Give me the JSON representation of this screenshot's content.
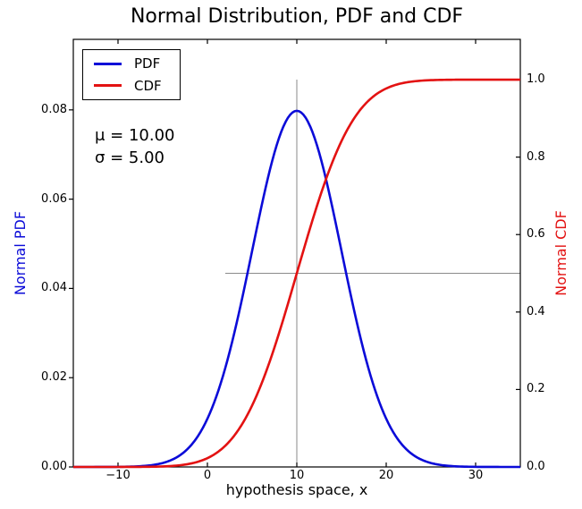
{
  "chart_data": {
    "type": "line",
    "title": "Normal Distribution, PDF and CDF",
    "xlabel": "hypothesis space, x",
    "ylabel_left": "Normal PDF",
    "ylabel_right": "Normal CDF",
    "xlim": [
      -15,
      35
    ],
    "ylim_left": [
      0,
      0.0958
    ],
    "ylim_right": [
      0,
      1.104
    ],
    "grid": false,
    "xticks": {
      "values": [
        -10,
        0,
        10,
        20,
        30
      ],
      "labels": [
        "−10",
        "0",
        "10",
        "20",
        "30"
      ]
    },
    "yticks_left": {
      "values": [
        0,
        0.02,
        0.04,
        0.06,
        0.08
      ],
      "labels": [
        "0.00",
        "0.02",
        "0.04",
        "0.06",
        "0.08"
      ]
    },
    "yticks_right": {
      "values": [
        0,
        0.2,
        0.4,
        0.6,
        0.8,
        1.0
      ],
      "labels": [
        "0.0",
        "0.2",
        "0.4",
        "0.6",
        "0.8",
        "1.0"
      ]
    },
    "series": [
      {
        "name": "PDF",
        "axis": "left",
        "color": "#0b0bd8",
        "distribution": "normal_pdf",
        "mu": 10,
        "sigma": 5
      },
      {
        "name": "CDF",
        "axis": "right",
        "color": "#e31212",
        "distribution": "normal_cdf",
        "mu": 10,
        "sigma": 5
      }
    ],
    "samples": {
      "x": [
        -15,
        -10,
        -5,
        0,
        5,
        10,
        15,
        20,
        25,
        30,
        35
      ],
      "pdf": [
        3e-07,
        2.68e-05,
        0.000886,
        0.010798,
        0.048394,
        0.079788,
        0.048394,
        0.010798,
        0.000886,
        2.68e-05,
        3e-07
      ],
      "cdf": [
        3e-07,
        3.17e-05,
        0.00135,
        0.02275,
        0.15866,
        0.5,
        0.84134,
        0.97725,
        0.99865,
        0.99997,
        0.9999997
      ]
    },
    "legend": {
      "position": "upper left",
      "entries": [
        {
          "label": "PDF",
          "color": "#0b0bd8"
        },
        {
          "label": "CDF",
          "color": "#e31212"
        }
      ]
    },
    "annotation": {
      "line1": "μ = 10.00",
      "line2": "σ = 5.00",
      "mu": 10.0,
      "sigma": 5.0
    },
    "crosshair": {
      "color": "#8a8a8a",
      "vline": {
        "x": 10,
        "y_from": 0,
        "y_to": 1.0,
        "axis": "right"
      },
      "hline": {
        "y": 0.5,
        "x_from": 2,
        "x_to": 35,
        "axis": "right"
      }
    },
    "axis_color": "#000000",
    "background": "#ffffff"
  }
}
